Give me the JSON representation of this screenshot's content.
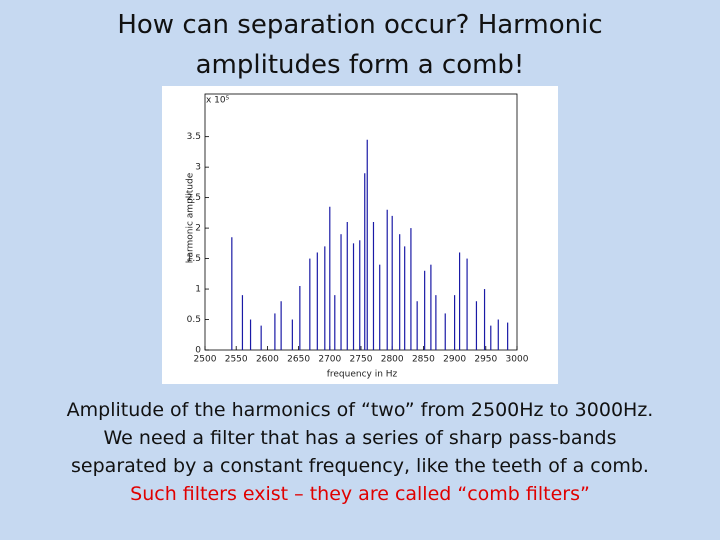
{
  "slide": {
    "title": [
      "How can separation occur? Harmonic",
      "amplitudes form a comb!"
    ],
    "caption": [
      "Amplitude of the harmonics of “two” from 2500Hz to 3000Hz.",
      "We need a filter that has  a series of sharp pass-bands",
      "separated by a constant frequency, like the teeth of a comb."
    ],
    "note": "Such filters exist – they are called “comb filters”"
  },
  "chart_data": {
    "type": "stem",
    "xlabel": "frequency in Hz",
    "ylabel": "harmonic amplitude",
    "y_multiplier": "x 10⁵",
    "color": "#1a1aa6",
    "x": [
      2543,
      2560,
      2573,
      2590,
      2612,
      2622,
      2640,
      2652,
      2668,
      2680,
      2692,
      2700,
      2708,
      2718,
      2728,
      2738,
      2748,
      2756,
      2760,
      2770,
      2780,
      2792,
      2800,
      2812,
      2820,
      2830,
      2840,
      2852,
      2862,
      2870,
      2885,
      2900,
      2908,
      2920,
      2935,
      2948,
      2958,
      2970,
      2985
    ],
    "values": [
      1.85,
      0.9,
      0.5,
      0.4,
      0.6,
      0.8,
      0.5,
      1.05,
      1.5,
      1.6,
      1.7,
      2.35,
      0.9,
      1.9,
      2.1,
      1.75,
      1.8,
      2.9,
      3.45,
      2.1,
      1.4,
      2.3,
      2.2,
      1.9,
      1.7,
      2.0,
      0.8,
      1.3,
      1.4,
      0.9,
      0.6,
      0.9,
      1.6,
      1.5,
      0.8,
      1.0,
      0.4,
      0.5,
      0.45
    ],
    "xlim": [
      2500,
      3000
    ],
    "xticks": [
      2500,
      2550,
      2600,
      2650,
      2700,
      2750,
      2800,
      2850,
      2900,
      2950,
      3000
    ],
    "ylim": [
      0,
      4.2
    ],
    "yticks": [
      0,
      0.5,
      1,
      1.5,
      2,
      2.5,
      3,
      3.5
    ]
  }
}
